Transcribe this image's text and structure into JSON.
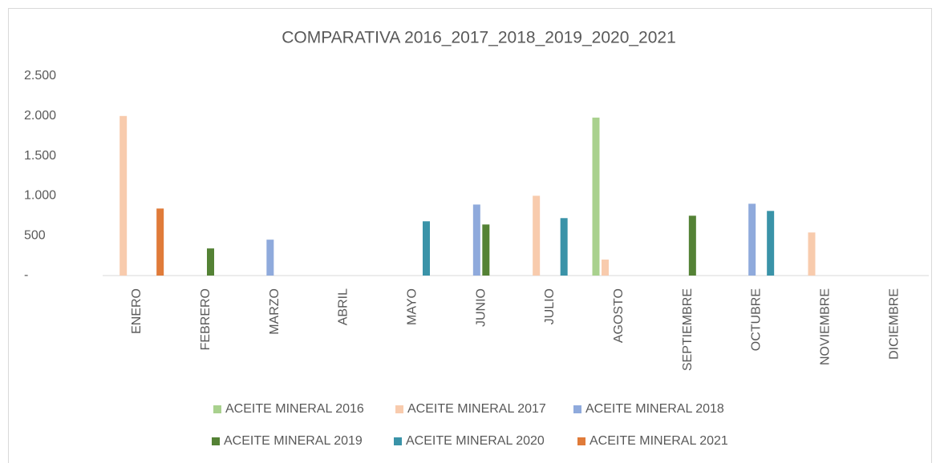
{
  "chart_data": {
    "type": "bar",
    "title": "COMPARATIVA 2016_2017_2018_2019_2020_2021",
    "categories": [
      "ENERO",
      "FEBRERO",
      "MARZO",
      "ABRIL",
      "MAYO",
      "JUNIO",
      "JULIO",
      "AGOSTO",
      "SEPTIEMBRE",
      "OCTUBRE",
      "NOVIEMBRE",
      "DICIEMBRE"
    ],
    "series": [
      {
        "name": "ACEITE MINERAL 2016",
        "color": "#a9d18e",
        "values": [
          null,
          null,
          null,
          null,
          null,
          null,
          null,
          1980,
          null,
          null,
          null,
          null
        ]
      },
      {
        "name": "ACEITE MINERAL 2017",
        "color": "#f8cbad",
        "values": [
          2000,
          null,
          null,
          null,
          null,
          null,
          1000,
          200,
          null,
          null,
          540,
          null
        ]
      },
      {
        "name": "ACEITE MINERAL 2018",
        "color": "#8faadc",
        "values": [
          null,
          null,
          450,
          null,
          null,
          890,
          null,
          null,
          null,
          900,
          null,
          null
        ]
      },
      {
        "name": "ACEITE MINERAL 2019",
        "color": "#548235",
        "values": [
          null,
          340,
          null,
          null,
          null,
          640,
          null,
          null,
          750,
          null,
          null,
          null
        ]
      },
      {
        "name": "ACEITE MINERAL 2020",
        "color": "#3a93a8",
        "values": [
          null,
          null,
          null,
          null,
          680,
          null,
          720,
          null,
          null,
          810,
          null,
          null
        ]
      },
      {
        "name": "ACEITE MINERAL 2021",
        "color": "#e07b39",
        "values": [
          840,
          null,
          null,
          null,
          null,
          null,
          null,
          null,
          null,
          null,
          null,
          null
        ]
      }
    ],
    "ylim": [
      0,
      2500
    ],
    "yticks": [
      {
        "value": 0,
        "label": "-"
      },
      500,
      {
        "value": 1000,
        "label": "1.000"
      },
      {
        "value": 1500,
        "label": "1.500"
      },
      {
        "value": 2000,
        "label": "2.000"
      },
      {
        "value": 2500,
        "label": "2.500"
      }
    ],
    "legend": "bottom"
  }
}
